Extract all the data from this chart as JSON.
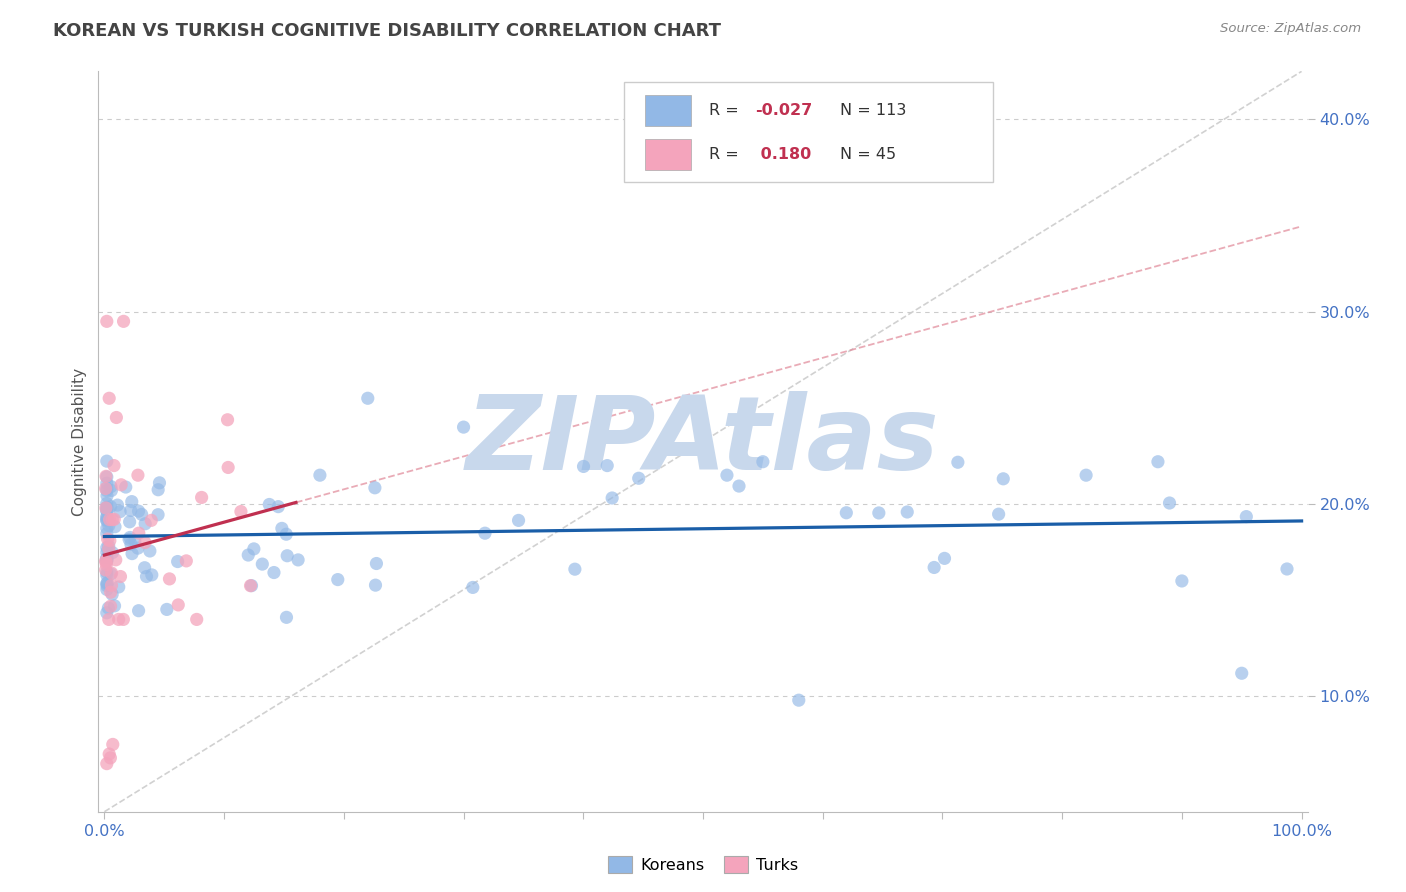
{
  "title": "KOREAN VS TURKISH COGNITIVE DISABILITY CORRELATION CHART",
  "source": "Source: ZipAtlas.com",
  "ylabel": "Cognitive Disability",
  "korean_R": -0.027,
  "korean_N": 113,
  "turkish_R": 0.18,
  "turkish_N": 45,
  "korean_color": "#92b8e6",
  "turkish_color": "#f4a4bc",
  "korean_line_color": "#1a5ea8",
  "turkish_line_color": "#c03050",
  "turkish_dash_color": "#e08898",
  "ref_line_color": "#cccccc",
  "grid_color": "#cccccc",
  "background_color": "#ffffff",
  "watermark": "ZIPAtlas",
  "watermark_color": "#c8d8ec",
  "axis_label_color": "#4472c4",
  "title_color": "#444444",
  "source_color": "#888888",
  "xlim_min": -0.005,
  "xlim_max": 1.005,
  "ylim_min": 0.04,
  "ylim_max": 0.425,
  "ytick_vals": [
    0.1,
    0.2,
    0.3,
    0.4
  ],
  "ytick_labels": [
    "10.0%",
    "20.0%",
    "30.0%",
    "40.0%"
  ],
  "legend_korean_label": "R = -0.027   N = 113",
  "legend_turkish_label": "R =  0.180   N = 45",
  "bottom_legend_korean": "Koreans",
  "bottom_legend_turkish": "Turks"
}
